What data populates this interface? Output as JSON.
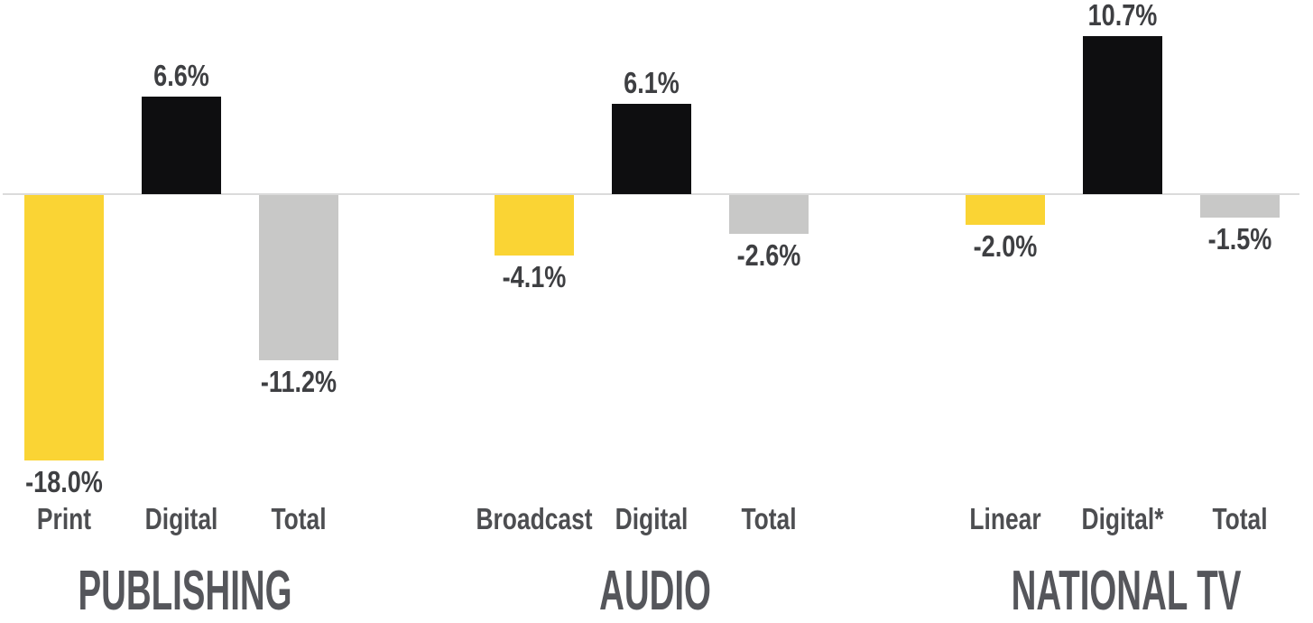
{
  "chart_data": {
    "type": "bar",
    "title": "",
    "value_unit": "%",
    "grid": false,
    "value_axis_visible": false,
    "zero_line": true,
    "ylim": [
      -18.0,
      10.7
    ],
    "colors": {
      "yellow": "#fad434",
      "black": "#0e0e10",
      "gray": "#c8c8c7"
    },
    "axis_colors": {
      "zero_line": "#dbdbdb"
    },
    "text_colors": {
      "value_label": "#3e3f42",
      "category_label": "#4d4e51",
      "group_title": "#55565b"
    },
    "groups": [
      {
        "title": "PUBLISHING",
        "bars": [
          {
            "category": "Print",
            "value": -18.0,
            "label": "-18.0%",
            "color_key": "yellow"
          },
          {
            "category": "Digital",
            "value": 6.6,
            "label": "6.6%",
            "color_key": "black"
          },
          {
            "category": "Total",
            "value": -11.2,
            "label": "-11.2%",
            "color_key": "gray"
          }
        ]
      },
      {
        "title": "AUDIO",
        "bars": [
          {
            "category": "Broadcast",
            "value": -4.1,
            "label": "-4.1%",
            "color_key": "yellow"
          },
          {
            "category": "Digital",
            "value": 6.1,
            "label": "6.1%",
            "color_key": "black"
          },
          {
            "category": "Total",
            "value": -2.6,
            "label": "-2.6%",
            "color_key": "gray"
          }
        ]
      },
      {
        "title": "NATIONAL TV",
        "bars": [
          {
            "category": "Linear",
            "value": -2.0,
            "label": "-2.0%",
            "color_key": "yellow"
          },
          {
            "category": "Digital*",
            "value": 10.7,
            "label": "10.7%",
            "color_key": "black"
          },
          {
            "category": "Total",
            "value": -1.5,
            "label": "-1.5%",
            "color_key": "gray"
          }
        ]
      }
    ]
  }
}
